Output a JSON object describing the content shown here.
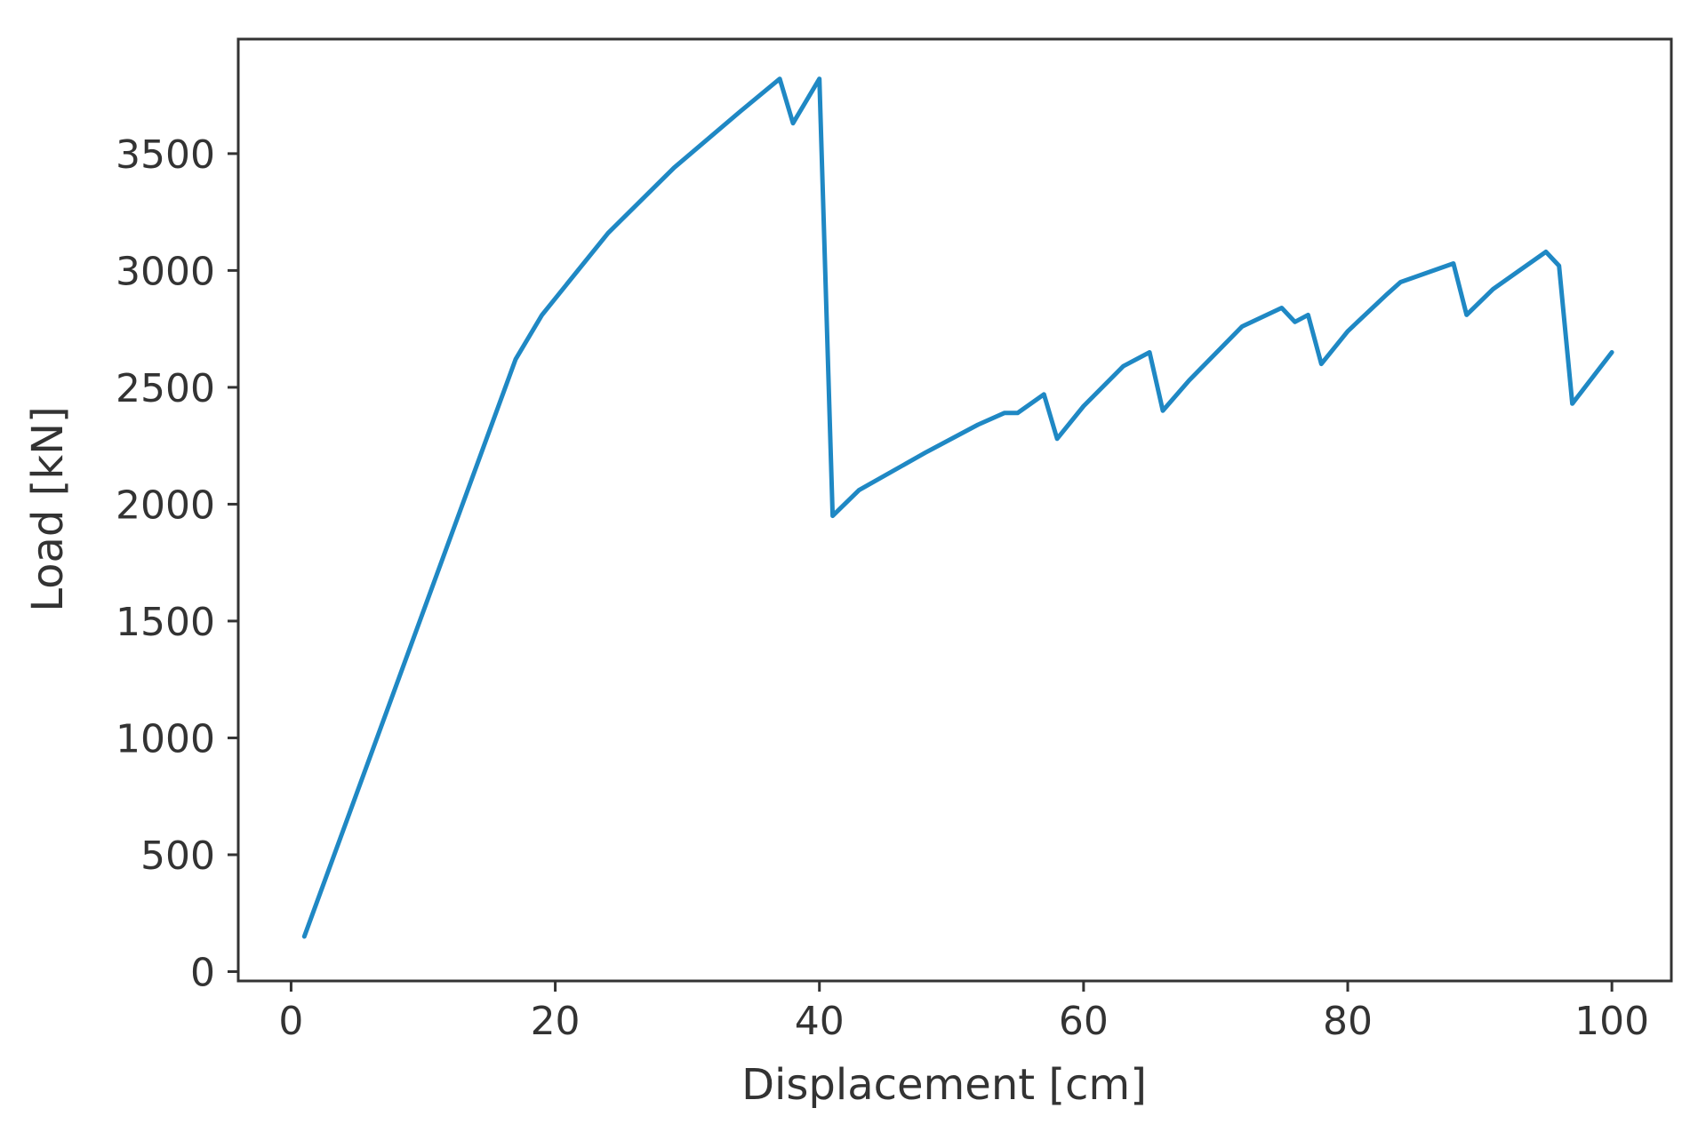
{
  "chart_data": {
    "type": "line",
    "title": "",
    "xlabel": "Displacement [cm]",
    "ylabel": "Load [kN]",
    "xlim": [
      -4,
      104.5
    ],
    "ylim": [
      -40,
      3990
    ],
    "xticks": [
      0,
      20,
      40,
      60,
      80,
      100
    ],
    "yticks": [
      0,
      500,
      1000,
      1500,
      2000,
      2500,
      3000,
      3500
    ],
    "grid": false,
    "legend": "none",
    "line_color": "#1f88c4",
    "series": [
      {
        "x": [
          1,
          17,
          19,
          24,
          29,
          34,
          37,
          38,
          40,
          41,
          43,
          48,
          52,
          54,
          55,
          57,
          58,
          60,
          63,
          65,
          66,
          68,
          72,
          75,
          76,
          77,
          78,
          80,
          83,
          84,
          88,
          89,
          91,
          93,
          95,
          96,
          97,
          100
        ],
        "y": [
          150,
          2620,
          2810,
          3160,
          3440,
          3680,
          3820,
          3630,
          3820,
          1950,
          2060,
          2220,
          2340,
          2390,
          2390,
          2470,
          2280,
          2420,
          2590,
          2650,
          2400,
          2530,
          2760,
          2840,
          2780,
          2810,
          2600,
          2740,
          2900,
          2950,
          3030,
          2810,
          2920,
          3000,
          3080,
          3020,
          2430,
          2650
        ]
      }
    ]
  }
}
